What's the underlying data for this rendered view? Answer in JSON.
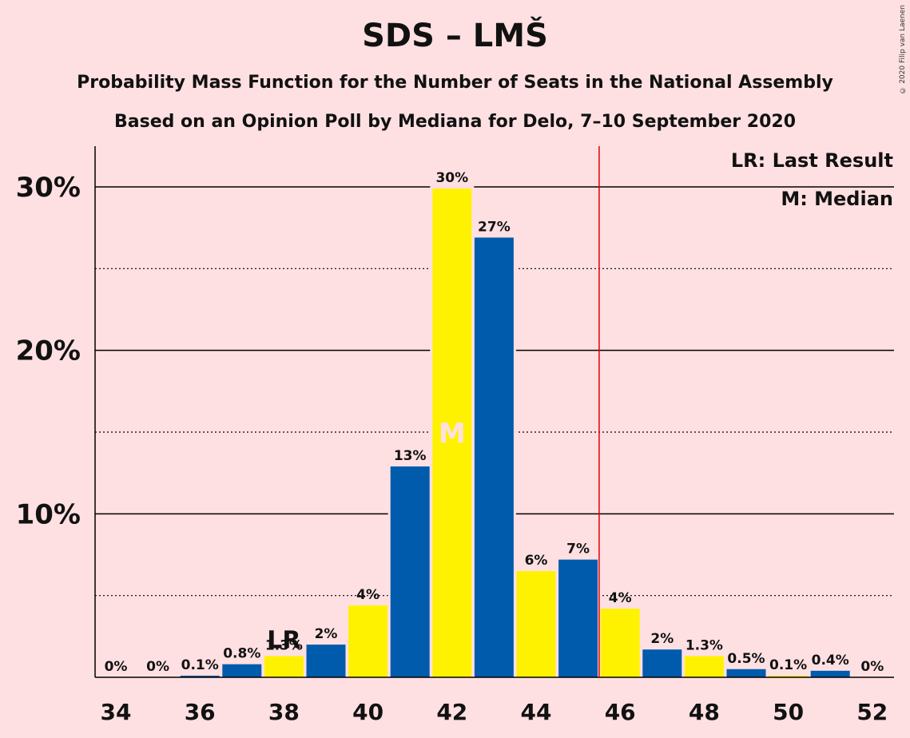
{
  "title": "SDS – LMŠ",
  "subtitle": "Probability Mass Function for the Number of Seats in the National Assembly",
  "subtitle2": "Based on an Opinion Poll by Mediana for Delo, 7–10 September 2020",
  "copyright": "© 2020 Filip van Laenen",
  "legend": {
    "last_result": "LR: Last Result",
    "median": "M: Median"
  },
  "markers": {
    "last_result_label": "LR",
    "median_label": "M"
  },
  "colors": {
    "background": "#FFE0E2",
    "blue": "#005BAC",
    "yellow": "#FFF200",
    "threshold": "#E00000"
  },
  "chart_data": {
    "type": "bar",
    "categories": [
      34,
      35,
      36,
      37,
      38,
      39,
      40,
      41,
      42,
      43,
      44,
      45,
      46,
      47,
      48,
      49,
      50,
      51,
      52
    ],
    "values": [
      0,
      0,
      0.1,
      0.8,
      1.3,
      2,
      4.4,
      12.9,
      29.9,
      26.9,
      6.5,
      7.2,
      4.2,
      1.7,
      1.3,
      0.5,
      0.1,
      0.4,
      0
    ],
    "value_labels": [
      "0%",
      "0%",
      "0.1%",
      "0.8%",
      "1.3%",
      "2%",
      "4%",
      "13%",
      "30%",
      "27%",
      "6%",
      "7%",
      "4%",
      "2%",
      "1.3%",
      "0.5%",
      "0.1%",
      "0.4%",
      "0%"
    ],
    "bar_colors": [
      "blue",
      "yellow",
      "blue",
      "blue",
      "yellow",
      "blue",
      "yellow",
      "blue",
      "yellow",
      "blue",
      "yellow",
      "blue",
      "yellow",
      "blue",
      "yellow",
      "blue",
      "yellow",
      "blue",
      "yellow"
    ],
    "x_tick_labels": [
      "34",
      "36",
      "38",
      "40",
      "42",
      "44",
      "46",
      "48",
      "50",
      "52"
    ],
    "y_tick_labels": [
      "10%",
      "20%",
      "30%"
    ],
    "ylim": [
      0,
      32.5
    ],
    "last_result": 38,
    "median": 42,
    "threshold_after": 45,
    "grid": true,
    "legend_position": "top-right"
  }
}
